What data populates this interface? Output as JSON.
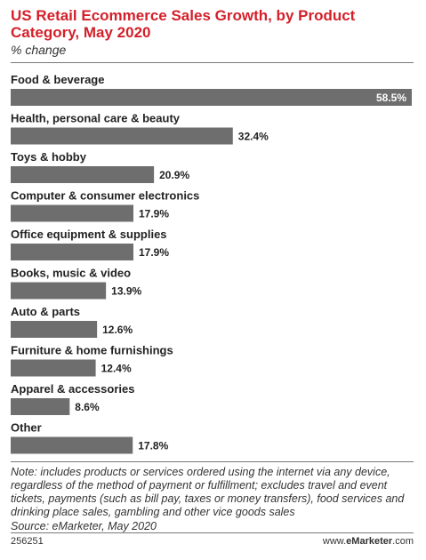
{
  "header": {
    "title": "US Retail Ecommerce Sales Growth, by Product Category, May 2020",
    "subtitle": "% change"
  },
  "chart_data": {
    "type": "bar",
    "orientation": "horizontal",
    "title": "US Retail Ecommerce Sales Growth, by Product Category, May 2020",
    "subtitle": "% change",
    "categories": [
      "Food & beverage",
      "Health, personal care & beauty",
      "Toys & hobby",
      "Computer & consumer electronics",
      "Office equipment & supplies",
      "Books, music & video",
      "Auto & parts",
      "Furniture & home furnishings",
      "Apparel & accessories",
      "Other"
    ],
    "values": [
      58.5,
      32.4,
      20.9,
      17.9,
      17.9,
      13.9,
      12.6,
      12.4,
      8.6,
      17.8
    ],
    "value_labels": [
      "58.5%",
      "32.4%",
      "20.9%",
      "17.9%",
      "17.9%",
      "13.9%",
      "12.6%",
      "12.4%",
      "8.6%",
      "17.8%"
    ],
    "xlim": [
      0,
      58.5
    ],
    "grid": false,
    "legend": "none",
    "colors": {
      "bar": "#6e6e6e",
      "inside_label": "#ffffff",
      "outside_label": "#222222"
    }
  },
  "footer": {
    "note": "Note: includes products or services ordered using the internet via any device, regardless of the method of payment or fulfillment; excludes travel and event tickets, payments (such as bill pay, taxes or money transfers), food services and drinking place sales, gambling and other vice goods sales",
    "source": "Source: eMarketer, May 2020",
    "chart_id": "256251",
    "brand_prefix": "www.",
    "brand_name": "eMarketer",
    "brand_suffix": ".com"
  }
}
